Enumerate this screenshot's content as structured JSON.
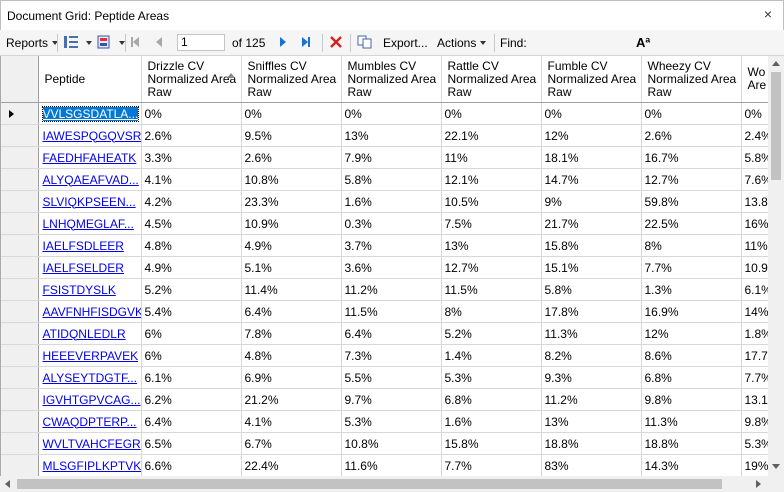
{
  "window": {
    "title": "Document Grid: Peptide Areas",
    "close_glyph": "×"
  },
  "toolbar": {
    "reports_label": "Reports",
    "page_value": "1",
    "page_count_label": "of 125",
    "export_label": "Export...",
    "actions_label": "Actions",
    "find_label": "Find:",
    "find_value": "",
    "font_icon_glyph": "Aª"
  },
  "columns": [
    {
      "label": "Peptide"
    },
    {
      "label": "Drizzle CV Normalized Area Raw",
      "sorted": "ascending"
    },
    {
      "label": "Sniffles CV Normalized Area Raw"
    },
    {
      "label": "Mumbles CV Normalized Area Raw"
    },
    {
      "label": "Rattle CV Normalized Area Raw"
    },
    {
      "label": "Fumble CV Normalized Area Raw"
    },
    {
      "label": "Wheezy CV Normalized Area Raw"
    },
    {
      "label": "Wo Nor Are"
    }
  ],
  "rows": [
    {
      "peptide": "VVLSGSDATLA...",
      "values": [
        "0%",
        "0%",
        "0%",
        "0%",
        "0%",
        "0%",
        "0%"
      ],
      "selected": true
    },
    {
      "peptide": "IAWESPQGQVSR",
      "values": [
        "2.6%",
        "9.5%",
        "13%",
        "22.1%",
        "12%",
        "2.6%",
        "2.4%"
      ]
    },
    {
      "peptide": "FAEDHFAHEATK",
      "values": [
        "3.3%",
        "2.6%",
        "7.9%",
        "11%",
        "18.1%",
        "16.7%",
        "5.8%"
      ]
    },
    {
      "peptide": "ALYQAEAFVAD...",
      "values": [
        "4.1%",
        "10.8%",
        "5.8%",
        "12.1%",
        "14.7%",
        "12.7%",
        "7.6%"
      ]
    },
    {
      "peptide": "SLVIQKPSEEN...",
      "values": [
        "4.2%",
        "23.3%",
        "1.6%",
        "10.5%",
        "9%",
        "59.8%",
        "13.8"
      ]
    },
    {
      "peptide": "LNHQMEGLAF...",
      "values": [
        "4.5%",
        "10.9%",
        "0.3%",
        "7.5%",
        "21.7%",
        "22.5%",
        "16%"
      ]
    },
    {
      "peptide": "IAELFSDLEER",
      "values": [
        "4.8%",
        "4.9%",
        "3.7%",
        "13%",
        "15.8%",
        "8%",
        "11%"
      ]
    },
    {
      "peptide": "IAELFSELDER",
      "values": [
        "4.9%",
        "5.1%",
        "3.6%",
        "12.7%",
        "15.1%",
        "7.7%",
        "10.9"
      ]
    },
    {
      "peptide": "FSISTDYSLK",
      "values": [
        "5.2%",
        "11.4%",
        "11.2%",
        "11.5%",
        "5.8%",
        "1.3%",
        "6.1%"
      ]
    },
    {
      "peptide": "AAVFNHFISDGVK",
      "values": [
        "5.4%",
        "6.4%",
        "11.5%",
        "8%",
        "17.8%",
        "16.9%",
        "14%"
      ]
    },
    {
      "peptide": "ATIDQNLEDLR",
      "values": [
        "6%",
        "7.8%",
        "6.4%",
        "5.2%",
        "11.3%",
        "12%",
        "1.8%"
      ]
    },
    {
      "peptide": "HEEEVERPAVEK",
      "values": [
        "6%",
        "4.8%",
        "7.3%",
        "1.4%",
        "8.2%",
        "8.6%",
        "17.7"
      ]
    },
    {
      "peptide": "ALYSEYTDGTF...",
      "values": [
        "6.1%",
        "6.9%",
        "5.5%",
        "5.3%",
        "9.3%",
        "6.8%",
        "7.7%"
      ]
    },
    {
      "peptide": "IGVHTGPVCAG...",
      "values": [
        "6.2%",
        "21.2%",
        "9.7%",
        "6.8%",
        "11.2%",
        "9.8%",
        "13.1"
      ]
    },
    {
      "peptide": "CWAQDPTERP...",
      "values": [
        "6.4%",
        "4.1%",
        "5.3%",
        "1.6%",
        "13%",
        "11.3%",
        "9.8%"
      ]
    },
    {
      "peptide": "WVLTVAHCFEGR",
      "values": [
        "6.5%",
        "6.7%",
        "10.8%",
        "15.8%",
        "18.8%",
        "18.8%",
        "5.3%"
      ]
    },
    {
      "peptide": "MLSGFIPLKPTVK",
      "values": [
        "6.6%",
        "22.4%",
        "11.6%",
        "7.7%",
        "83%",
        "14.3%",
        "19%"
      ]
    }
  ]
}
